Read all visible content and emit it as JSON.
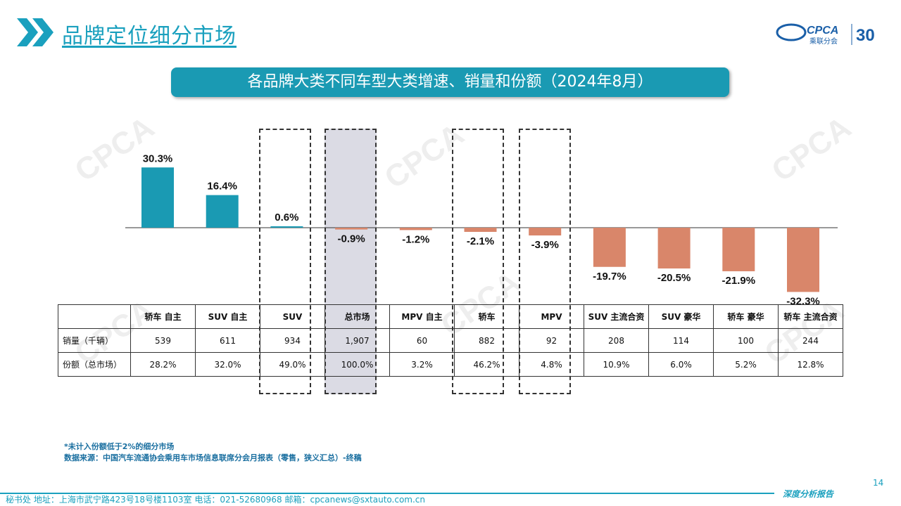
{
  "header": {
    "title": "品牌定位细分市场",
    "logo_text": "CPCA",
    "logo_sub": "乘联分会",
    "logo_30": "30"
  },
  "banner": {
    "title": "各品牌大类不同车型大类增速、销量和份额（2024年8月）"
  },
  "colors": {
    "positive": "#1a9ab3",
    "negative": "#d9866a",
    "accent": "#1aa0be"
  },
  "chart_data": {
    "type": "bar",
    "categories": [
      "轿车 自主",
      "SUV 自主",
      "SUV",
      "总市场",
      "MPV 自主",
      "轿车",
      "MPV",
      "SUV 主流合资",
      "SUV 豪华",
      "轿车 豪华",
      "轿车 主流合资"
    ],
    "values": [
      30.3,
      16.4,
      0.6,
      -0.9,
      -1.2,
      -2.1,
      -3.9,
      -19.7,
      -20.5,
      -21.9,
      -32.3
    ],
    "value_labels": [
      "30.3%",
      "16.4%",
      "0.6%",
      "-0.9%",
      "-1.2%",
      "-2.1%",
      "-3.9%",
      "-19.7%",
      "-20.5%",
      "-21.9%",
      "-32.3%"
    ],
    "ylim": [
      -35,
      35
    ],
    "highlighted": [
      "SUV",
      "总市场",
      "轿车",
      "MPV"
    ]
  },
  "table": {
    "rows": [
      {
        "label": "销量（千辆）",
        "cells": [
          "539",
          "611",
          "934",
          "1,907",
          "60",
          "882",
          "92",
          "208",
          "114",
          "100",
          "244"
        ]
      },
      {
        "label": "份额（总市场）",
        "cells": [
          "28.2%",
          "32.0%",
          "49.0%",
          "100.0%",
          "3.2%",
          "46.2%",
          "4.8%",
          "10.9%",
          "6.0%",
          "5.2%",
          "12.8%"
        ]
      }
    ]
  },
  "notes": {
    "note1": "*未计入份额低于2%的细分市场",
    "note2": "数据来源：中国汽车流通协会乘用车市场信息联席分会月报表（零售，狭义汇总）-终稿"
  },
  "footer": {
    "text": "秘书处   地址：上海市武宁路423号18号楼1103室   电话：021-52680968   邮箱：cpcanews@sxtauto.com.cn",
    "right": "深度分析报告",
    "page": "14"
  }
}
